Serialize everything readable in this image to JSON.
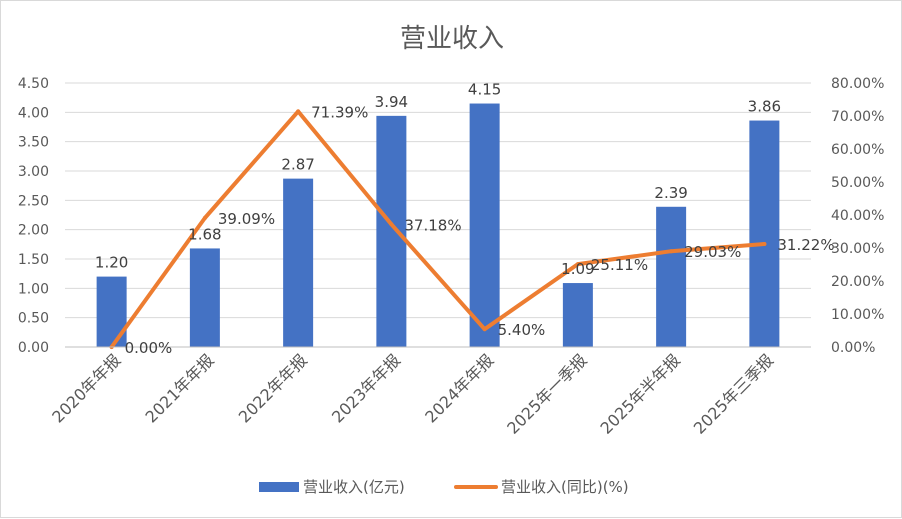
{
  "chart_data": {
    "type": "bar",
    "title": "营业收入",
    "categories": [
      "2020年年报",
      "2021年年报",
      "2022年年报",
      "2023年年报",
      "2024年年报",
      "2025年一季报",
      "2025年半年报",
      "2025年三季报"
    ],
    "series": [
      {
        "name": "营业收入(亿元)",
        "type": "bar",
        "axis": "left",
        "values": [
          1.2,
          1.68,
          2.87,
          3.94,
          4.15,
          1.09,
          2.39,
          3.86
        ],
        "labels": [
          "1.20",
          "1.68",
          "2.87",
          "3.94",
          "4.15",
          "1.09",
          "2.39",
          "3.86"
        ],
        "color": "#4472C4"
      },
      {
        "name": "营业收入(同比)(%)",
        "type": "line",
        "axis": "right",
        "values": [
          0.0,
          39.09,
          71.39,
          37.18,
          5.4,
          25.11,
          29.03,
          31.22
        ],
        "labels": [
          "0.00%",
          "39.09%",
          "71.39%",
          "37.18%",
          "5.40%",
          "25.11%",
          "29.03%",
          "31.22%"
        ],
        "color": "#ED7D31"
      }
    ],
    "y_left": {
      "ylim": [
        0,
        4.5
      ],
      "ticks": [
        "0.00",
        "0.50",
        "1.00",
        "1.50",
        "2.00",
        "2.50",
        "3.00",
        "3.50",
        "4.00",
        "4.50"
      ]
    },
    "y_right": {
      "ylim": [
        0,
        80
      ],
      "ticks": [
        "0.00%",
        "10.00%",
        "20.00%",
        "30.00%",
        "40.00%",
        "50.00%",
        "60.00%",
        "70.00%",
        "80.00%"
      ]
    },
    "legend_position": "bottom",
    "grid": true
  }
}
